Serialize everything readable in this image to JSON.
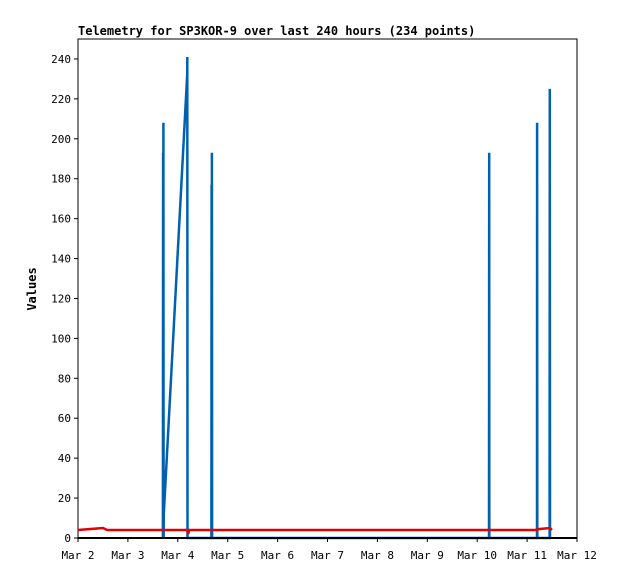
{
  "chart_data": {
    "type": "line",
    "title": "Telemetry for SP3KOR-9 over last 240 hours (234 points)",
    "xlabel": "",
    "ylabel": "Values",
    "x_axis_type": "date",
    "xlim": [
      "2024-03-02T00:00",
      "2024-03-12T00:00"
    ],
    "ylim": [
      0,
      250
    ],
    "x_ticks": [
      {
        "date": "2024-03-02T00:00",
        "label": "Mar 2"
      },
      {
        "date": "2024-03-03T00:00",
        "label": "Mar 3"
      },
      {
        "date": "2024-03-04T00:00",
        "label": "Mar 4"
      },
      {
        "date": "2024-03-05T00:00",
        "label": "Mar 5"
      },
      {
        "date": "2024-03-06T00:00",
        "label": "Mar 6"
      },
      {
        "date": "2024-03-07T00:00",
        "label": "Mar 7"
      },
      {
        "date": "2024-03-08T00:00",
        "label": "Mar 8"
      },
      {
        "date": "2024-03-09T00:00",
        "label": "Mar 9"
      },
      {
        "date": "2024-03-10T00:00",
        "label": "Mar 10"
      },
      {
        "date": "2024-03-11T00:00",
        "label": "Mar 11"
      },
      {
        "date": "2024-03-12T00:00",
        "label": "Mar 12"
      }
    ],
    "y_ticks": [
      0,
      20,
      40,
      60,
      80,
      100,
      120,
      140,
      160,
      180,
      200,
      220,
      240
    ],
    "y_tick_labels": [
      "0",
      "20",
      "40",
      "60",
      "80",
      "100",
      "120",
      "140",
      "160",
      "180",
      "200",
      "220",
      "240"
    ],
    "grid": false,
    "series": [
      {
        "color": "#0060b0",
        "points": [
          [
            "2024-03-03T16:50",
            0
          ],
          [
            "2024-03-03T16:55",
            193
          ],
          [
            "2024-03-03T17:00",
            0
          ],
          [
            "2024-03-03T17:05",
            208
          ],
          [
            "2024-03-03T17:10",
            0
          ],
          [
            "2024-03-03T17:15",
            12
          ],
          [
            "2024-03-04T04:30",
            232
          ],
          [
            "2024-03-04T04:35",
            241
          ],
          [
            "2024-03-04T04:40",
            0
          ],
          [
            "2024-03-04T16:10",
            0
          ],
          [
            "2024-03-04T16:15",
            177
          ],
          [
            "2024-03-04T16:20",
            0
          ],
          [
            "2024-03-04T16:25",
            193
          ],
          [
            "2024-03-04T16:30",
            0
          ],
          [
            "2024-03-10T05:40",
            0
          ],
          [
            "2024-03-10T05:45",
            193
          ],
          [
            "2024-03-10T05:50",
            0
          ],
          [
            "2024-03-11T04:45",
            0
          ],
          [
            "2024-03-11T04:50",
            208
          ],
          [
            "2024-03-11T04:55",
            0
          ],
          [
            "2024-03-11T10:50",
            0
          ],
          [
            "2024-03-11T10:55",
            225
          ],
          [
            "2024-03-11T11:00",
            0
          ]
        ]
      },
      {
        "color": "#e00000",
        "points": [
          [
            "2024-03-02T00:00",
            4
          ],
          [
            "2024-03-02T06:00",
            4.5
          ],
          [
            "2024-03-02T12:00",
            5
          ],
          [
            "2024-03-02T14:00",
            4
          ],
          [
            "2024-03-04T04:30",
            4
          ],
          [
            "2024-03-04T05:00",
            2
          ],
          [
            "2024-03-04T05:30",
            4
          ],
          [
            "2024-03-11T04:00",
            4
          ],
          [
            "2024-03-11T06:00",
            4.5
          ],
          [
            "2024-03-11T11:00",
            5
          ],
          [
            "2024-03-11T12:00",
            4
          ]
        ]
      },
      {
        "color": "#000000",
        "points": [
          [
            "2024-03-02T00:00",
            0
          ],
          [
            "2024-03-12T00:00",
            0
          ]
        ]
      }
    ]
  }
}
